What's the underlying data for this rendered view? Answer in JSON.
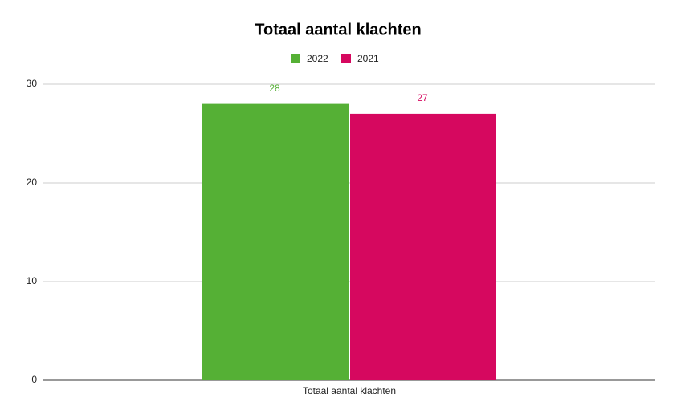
{
  "chart_data": {
    "type": "bar",
    "title": "Totaal aantal klachten",
    "categories": [
      "Totaal aantal klachten"
    ],
    "series": [
      {
        "name": "2022",
        "color": "#55b035",
        "values": [
          28
        ]
      },
      {
        "name": "2021",
        "color": "#d6085f",
        "values": [
          27
        ]
      }
    ],
    "ylim": [
      0,
      30
    ],
    "yticks": [
      0,
      10,
      20,
      30
    ],
    "grid": true,
    "legend": "top",
    "data_labels": true
  }
}
